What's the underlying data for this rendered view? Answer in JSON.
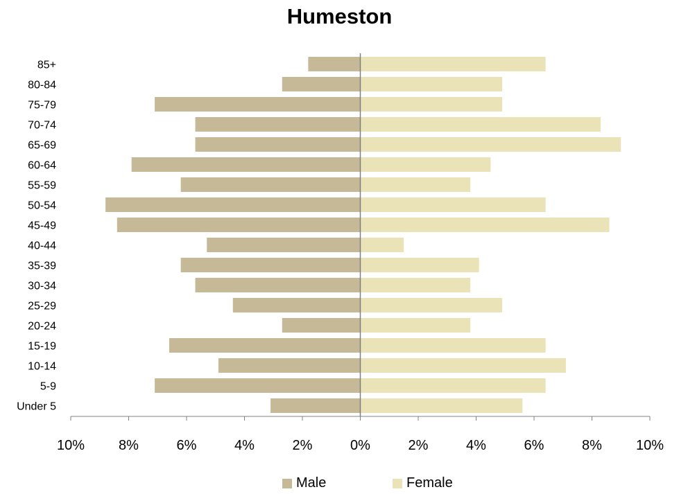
{
  "chart_data": {
    "type": "bar",
    "orientation": "horizontal",
    "layout": "population-pyramid",
    "title": "Humeston",
    "categories": [
      "Under 5",
      "5-9",
      "10-14",
      "15-19",
      "20-24",
      "25-29",
      "30-34",
      "35-39",
      "40-44",
      "45-49",
      "50-54",
      "55-59",
      "60-64",
      "65-69",
      "70-74",
      "75-79",
      "80-84",
      "85+"
    ],
    "series": [
      {
        "name": "Male",
        "color": "#c5b998",
        "values": [
          3.1,
          7.1,
          4.9,
          6.6,
          2.7,
          4.4,
          5.7,
          6.2,
          5.3,
          8.4,
          8.8,
          6.2,
          7.9,
          5.7,
          5.7,
          7.1,
          2.7,
          1.8
        ]
      },
      {
        "name": "Female",
        "color": "#ebe3b8",
        "values": [
          5.6,
          6.4,
          7.1,
          6.4,
          3.8,
          4.9,
          3.8,
          4.1,
          1.5,
          8.6,
          6.4,
          3.8,
          4.5,
          9.0,
          8.3,
          4.9,
          4.9,
          6.4
        ]
      }
    ],
    "x_ticks": [
      "10%",
      "8%",
      "6%",
      "4%",
      "2%",
      "0%",
      "2%",
      "4%",
      "6%",
      "8%",
      "10%"
    ],
    "xlim": [
      -10,
      10
    ],
    "grid": false,
    "legend_position": "bottom"
  }
}
